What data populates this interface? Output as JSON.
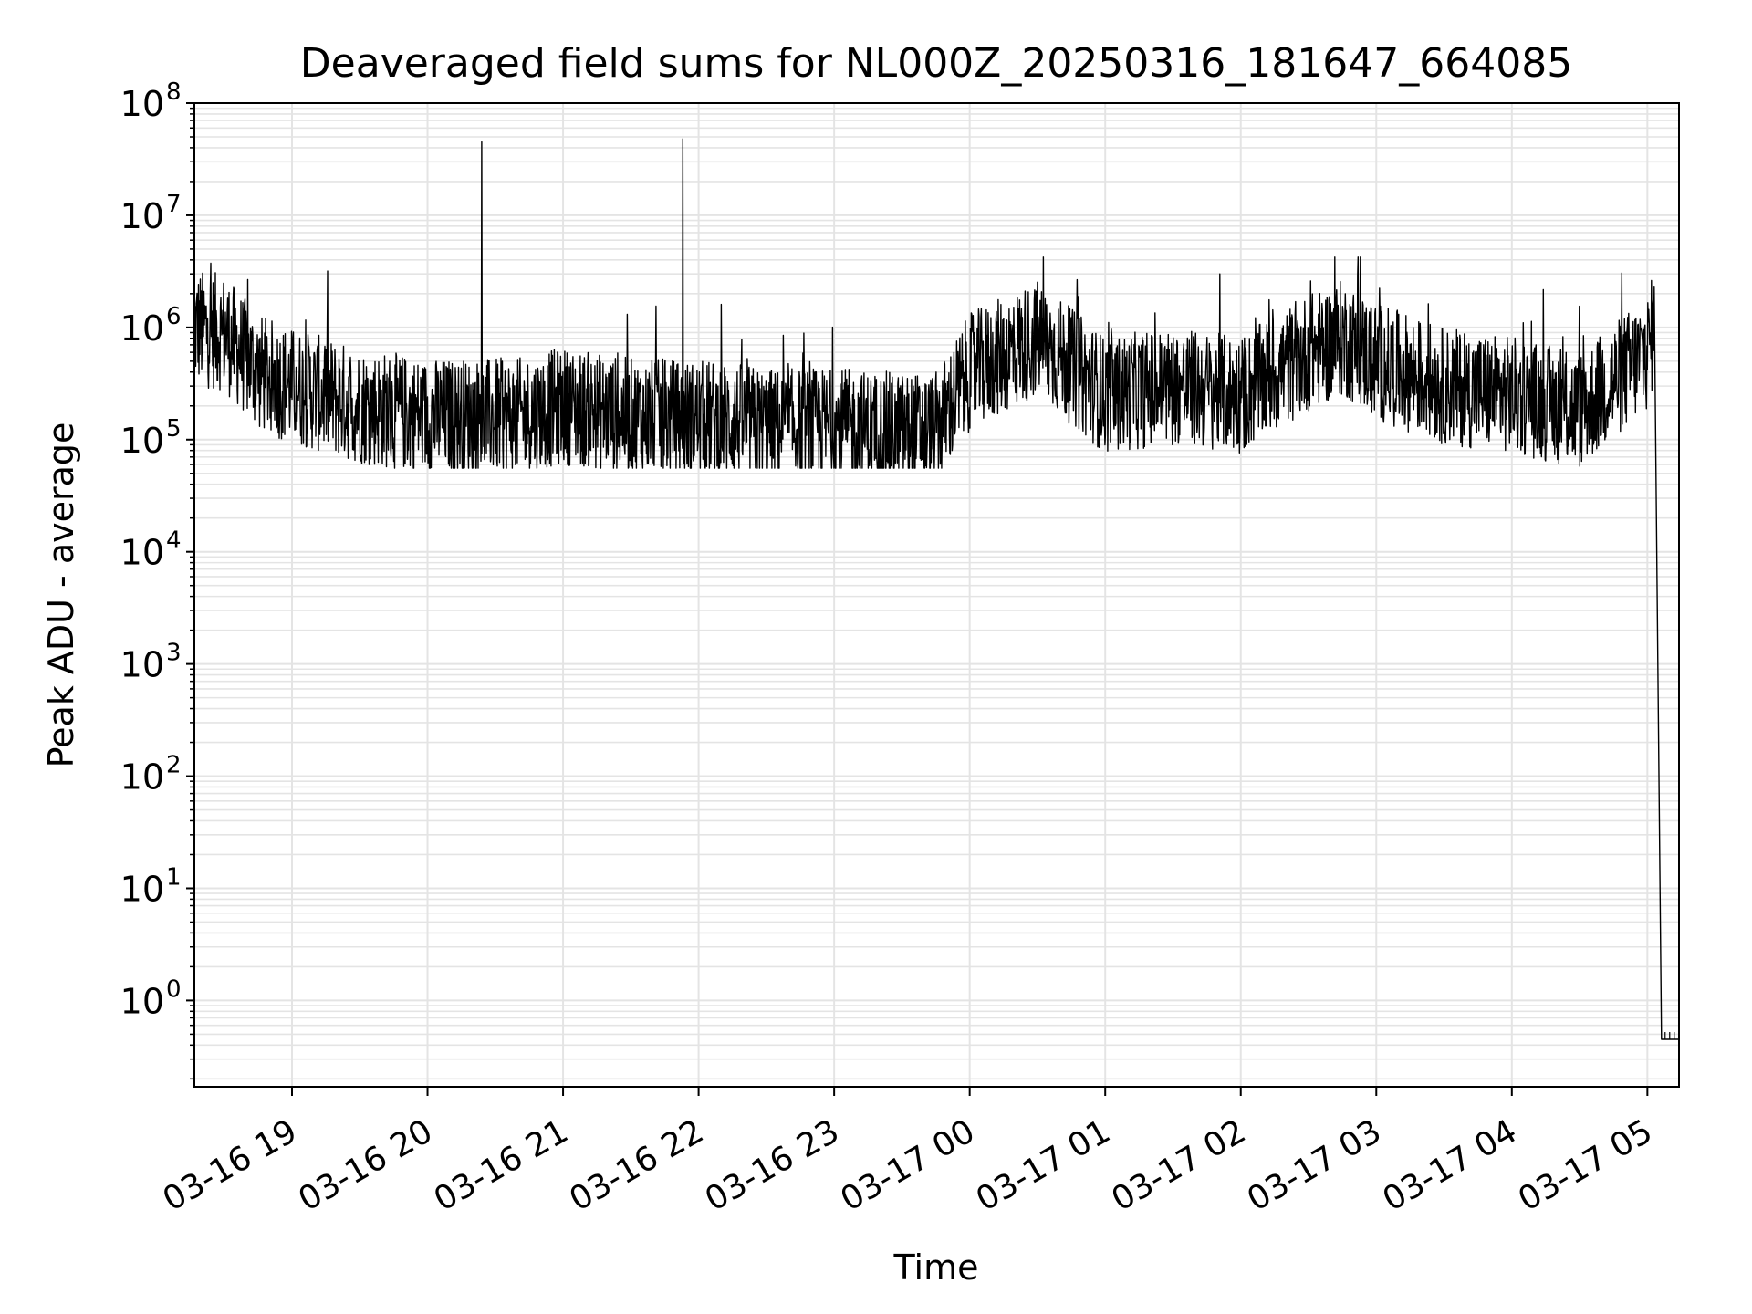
{
  "chart_data": {
    "type": "line",
    "title": "Deaveraged field sums for NL000Z_20250316_181647_664085",
    "xlabel": "Time",
    "ylabel": "Peak ADU - average",
    "yscale": "log",
    "ylim": [
      0.17,
      100000000
    ],
    "xlim": [
      "2025-03-16 18:16:47",
      "2025-03-17 05:14:00"
    ],
    "grid": "on (major and minor, light grey)",
    "line_color": "#000000",
    "x_tick_labels": [
      "03-16 19",
      "03-16 20",
      "03-16 21",
      "03-16 22",
      "03-16 23",
      "03-17 00",
      "03-17 01",
      "03-17 02",
      "03-17 03",
      "03-17 04",
      "03-17 05"
    ],
    "y_ticks": [
      {
        "base": "10",
        "exp": "0"
      },
      {
        "base": "10",
        "exp": "1"
      },
      {
        "base": "10",
        "exp": "2"
      },
      {
        "base": "10",
        "exp": "3"
      },
      {
        "base": "10",
        "exp": "4"
      },
      {
        "base": "10",
        "exp": "5"
      },
      {
        "base": "10",
        "exp": "6"
      },
      {
        "base": "10",
        "exp": "7"
      },
      {
        "base": "10",
        "exp": "8"
      }
    ],
    "series": [
      {
        "x": [
          "2025-03-16 18:16:47",
          "2025-03-16 18:30",
          "2025-03-16 18:45",
          "2025-03-16 19:00",
          "2025-03-16 19:30",
          "2025-03-16 20:00",
          "2025-03-16 20:24",
          "2025-03-16 20:40",
          "2025-03-16 21:00",
          "2025-03-16 21:30",
          "2025-03-16 21:53",
          "2025-03-16 22:15",
          "2025-03-16 22:30",
          "2025-03-16 23:00",
          "2025-03-16 23:30",
          "2025-03-16 23:45",
          "2025-03-17 00:00",
          "2025-03-17 00:30",
          "2025-03-17 01:00",
          "2025-03-17 01:30",
          "2025-03-17 02:00",
          "2025-03-17 02:30",
          "2025-03-17 02:45",
          "2025-03-17 03:00",
          "2025-03-17 03:30",
          "2025-03-17 04:00",
          "2025-03-17 04:30",
          "2025-03-17 05:00",
          "2025-03-17 05:03",
          "2025-03-17 05:14"
        ],
        "y": [
          1000000,
          900000,
          400000,
          300000,
          200000,
          160000,
          45000000,
          160000,
          200000,
          160000,
          48000000,
          150000,
          130000,
          130000,
          120000,
          120000,
          400000,
          800000,
          250000,
          300000,
          250000,
          600000,
          800000,
          500000,
          300000,
          250000,
          180000,
          600000,
          1000000,
          0.45
        ],
        "spikes": [
          {
            "x": "2025-03-16 20:24",
            "y": 45000000
          },
          {
            "x": "2025-03-16 21:53",
            "y": 48000000
          }
        ],
        "typical_band": {
          "low": 70000,
          "high": 3000000
        }
      }
    ]
  }
}
